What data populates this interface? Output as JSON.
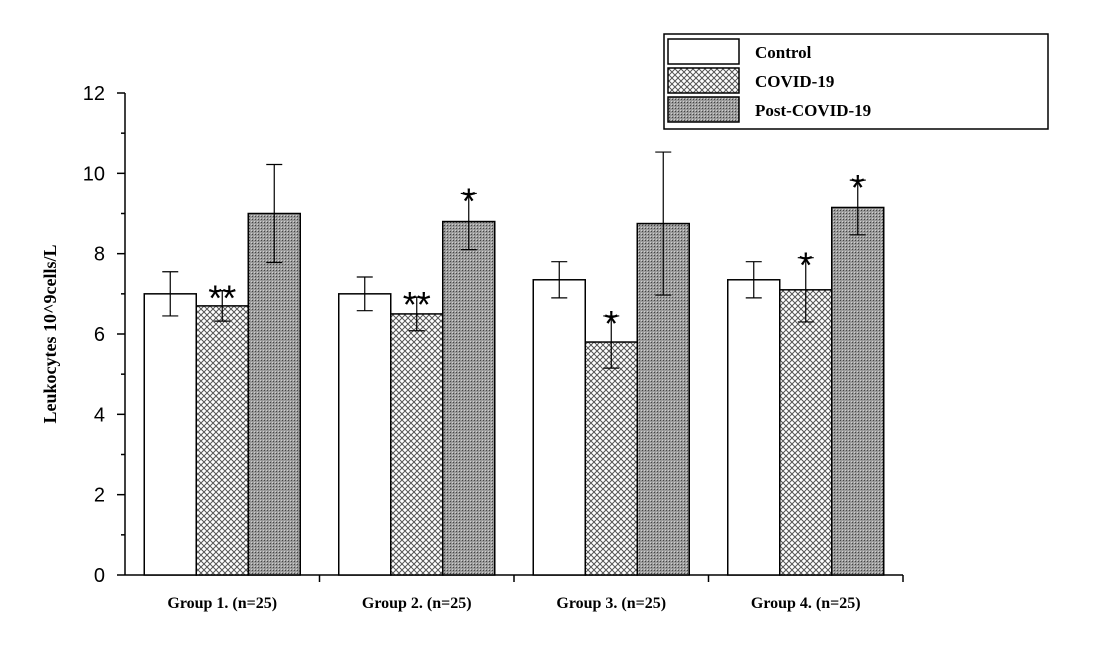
{
  "chart_data": {
    "type": "bar",
    "title": "",
    "xlabel": "",
    "ylabel": "Leukocytes 10^9cells/L",
    "ylim": [
      0,
      12
    ],
    "yticks": [
      0,
      2,
      4,
      6,
      8,
      10,
      12
    ],
    "categories": [
      "Group 1. (n=25)",
      "Group 2. (n=25)",
      "Group 3. (n=25)",
      "Group 4. (n=25)"
    ],
    "series": [
      {
        "name": "Control",
        "pattern": "none",
        "values": [
          7.0,
          7.0,
          7.35,
          7.35
        ],
        "errors": [
          0.55,
          0.42,
          0.45,
          0.45
        ],
        "significance": [
          "",
          "",
          "",
          ""
        ]
      },
      {
        "name": "COVID-19",
        "pattern": "crosshatch",
        "values": [
          6.7,
          6.5,
          5.8,
          7.1
        ],
        "errors": [
          0.38,
          0.42,
          0.65,
          0.8
        ],
        "significance": [
          "**",
          "**",
          "*",
          "*"
        ]
      },
      {
        "name": "Post-COVID-19",
        "pattern": "dense-dots",
        "values": [
          9.0,
          8.8,
          8.75,
          9.15
        ],
        "errors": [
          1.22,
          0.7,
          1.78,
          0.68
        ],
        "significance": [
          "",
          "*",
          "",
          "*"
        ]
      }
    ],
    "legend_position": "top-right",
    "grid": false
  }
}
